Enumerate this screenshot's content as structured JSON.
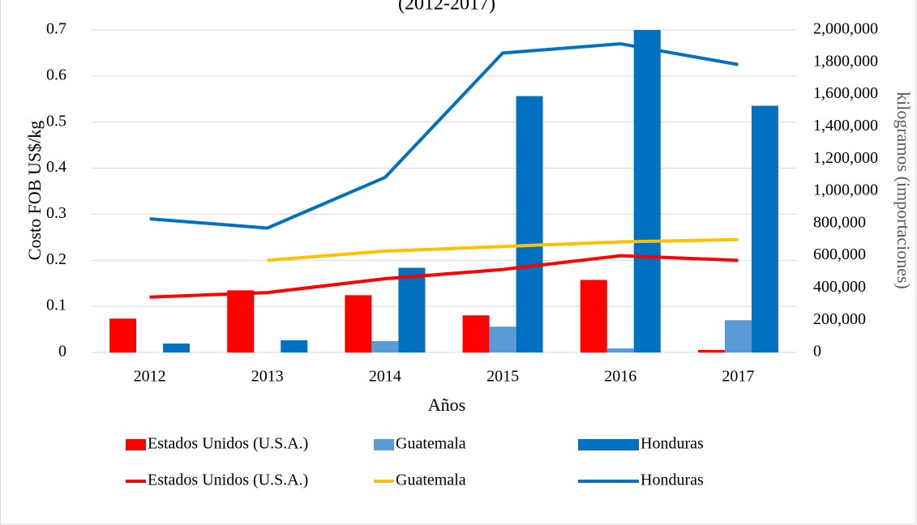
{
  "chart_data": {
    "type": "combo",
    "title": "(2012-2017)",
    "x_label": "Años",
    "y_label": "Costo FOB US$/kg",
    "y2_label": "kilogramos (importaciones)",
    "categories": [
      "2012",
      "2013",
      "2014",
      "2015",
      "2016",
      "2017"
    ],
    "ylim": [
      0,
      0.7
    ],
    "yticks": [
      0,
      0.1,
      0.2,
      0.3,
      0.4,
      0.5,
      0.6,
      0.7
    ],
    "y2lim": [
      0,
      2000000
    ],
    "y2ticks": [
      0,
      {
        "value": 200000,
        "label": "200,000"
      },
      {
        "value": 400000,
        "label": "400,000"
      },
      {
        "value": 600000,
        "label": "600,000"
      },
      {
        "value": 800000,
        "label": "800,000"
      },
      {
        "value": 1000000,
        "label": "1,000,000"
      },
      {
        "value": 1200000,
        "label": "1,200,000"
      },
      {
        "value": 1400000,
        "label": "1,400,000"
      },
      {
        "value": 1600000,
        "label": "1,600,000"
      },
      {
        "value": 1800000,
        "label": "1,800,000"
      },
      {
        "value": 2000000,
        "label": "2,000,000"
      }
    ],
    "grid": true,
    "legend": "bottom",
    "series": [
      {
        "name": "Estados Unidos (U.S.A.)",
        "type": "bar",
        "axis": "y2",
        "color": "#ff0000",
        "values": [
          210000,
          385000,
          355000,
          230000,
          450000,
          15000
        ]
      },
      {
        "name": "Guatemala",
        "type": "bar",
        "axis": "y2",
        "color": "#5b9bd5",
        "values": [
          0,
          0,
          70000,
          160000,
          25000,
          200000
        ]
      },
      {
        "name": "Honduras",
        "type": "bar",
        "axis": "y2",
        "color": "#0070c0",
        "values": [
          55000,
          75000,
          525000,
          1590000,
          2000000,
          1530000
        ]
      },
      {
        "name": "Estados Unidos (U.S.A.)",
        "type": "line",
        "axis": "y",
        "color": "#ff0000",
        "values": [
          0.12,
          0.13,
          0.16,
          0.18,
          0.21,
          0.2
        ]
      },
      {
        "name": "Guatemala",
        "type": "line",
        "axis": "y",
        "color": "#ffc000",
        "values": [
          null,
          0.2,
          0.22,
          0.23,
          0.24,
          0.245
        ]
      },
      {
        "name": "Honduras",
        "type": "line",
        "axis": "y",
        "color": "#0070c0",
        "values": [
          0.29,
          0.27,
          0.38,
          0.65,
          0.67,
          0.625
        ]
      }
    ]
  }
}
